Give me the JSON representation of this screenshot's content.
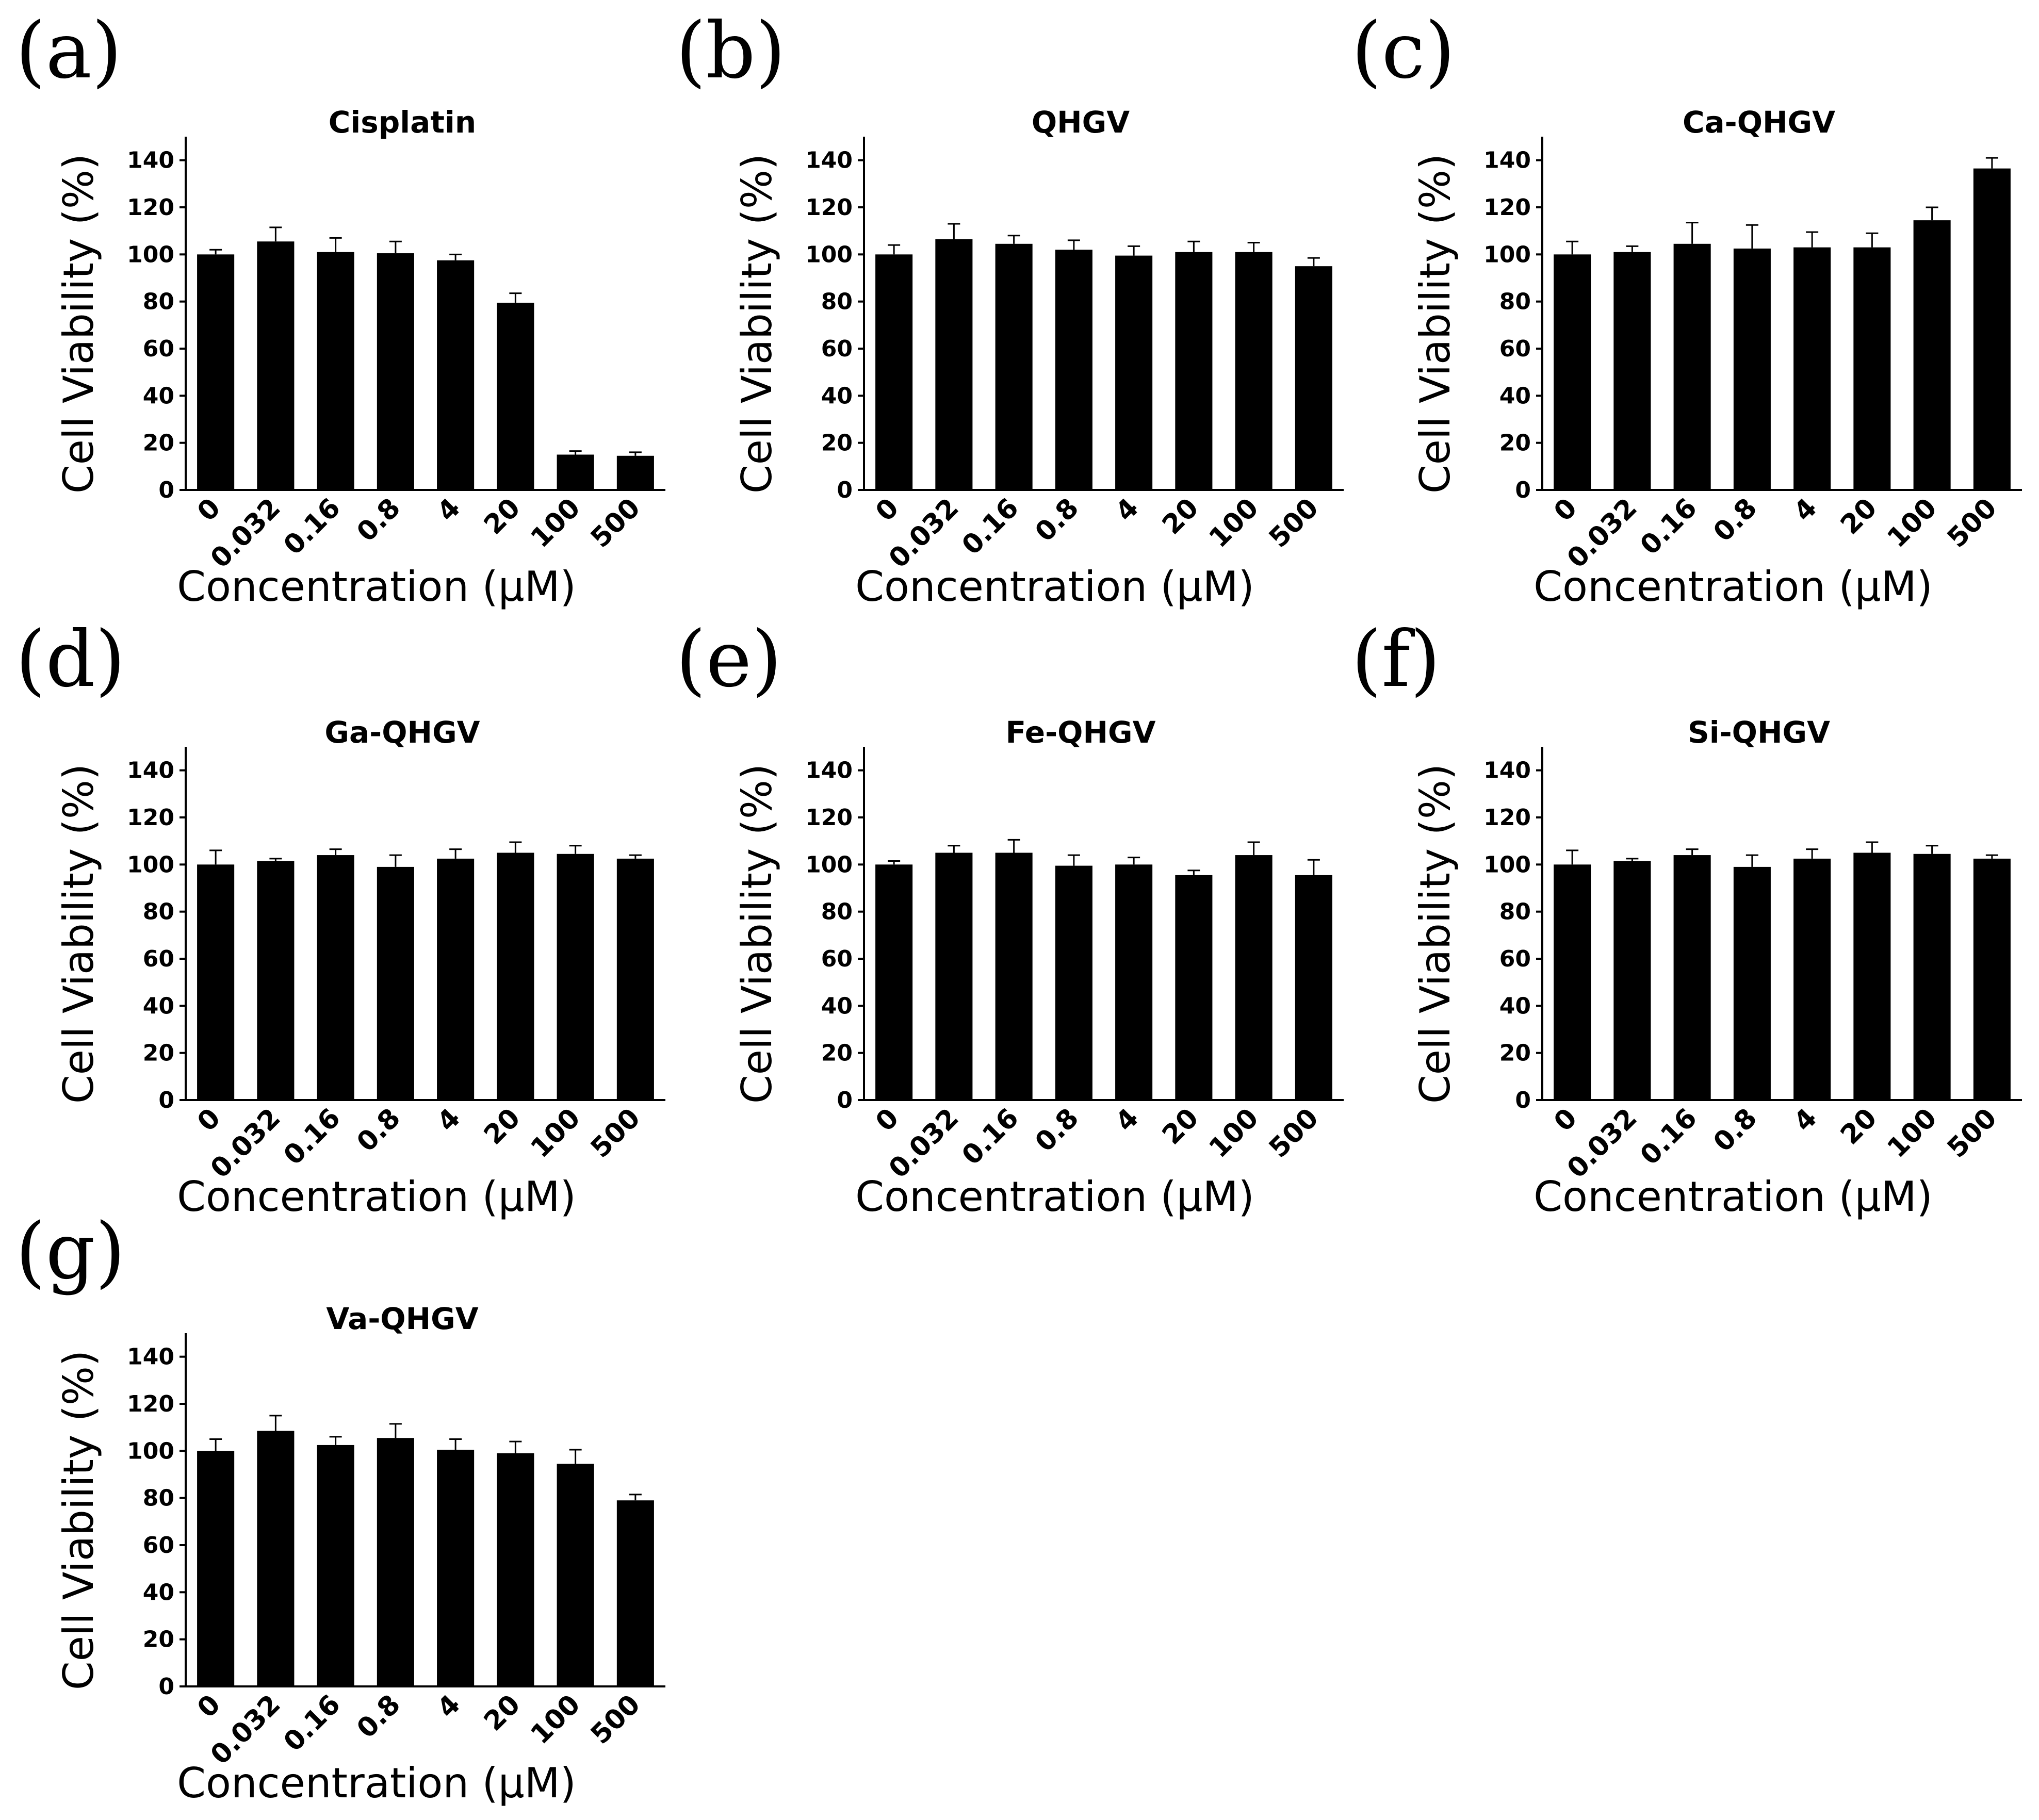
{
  "chart_data": [
    {
      "type": "bar",
      "panel": "(a)",
      "title": "Cisplatin",
      "categories": [
        "0",
        "0.032",
        "0.16",
        "0.8",
        "4",
        "20",
        "100",
        "500"
      ],
      "values": [
        100,
        105.5,
        101,
        100.5,
        97.5,
        79.5,
        15,
        14.5
      ],
      "errors": [
        2,
        6,
        6,
        5,
        2.5,
        4,
        1.5,
        1.5
      ],
      "xlabel": "Concentration (μM)",
      "ylabel": "Cell Viability (%)",
      "ylim": [
        0,
        150
      ],
      "yticks": [
        0,
        20,
        40,
        60,
        80,
        100,
        120,
        140
      ],
      "grid": false
    },
    {
      "type": "bar",
      "panel": "(b)",
      "title": "QHGV",
      "categories": [
        "0",
        "0.032",
        "0.16",
        "0.8",
        "4",
        "20",
        "100",
        "500"
      ],
      "values": [
        100,
        106.5,
        104.5,
        102,
        99.5,
        101,
        101,
        95
      ],
      "errors": [
        4,
        6.5,
        3.5,
        4,
        4,
        4.5,
        4,
        3.5
      ],
      "xlabel": "Concentration (μM)",
      "ylabel": "Cell Viability (%)",
      "ylim": [
        0,
        150
      ],
      "yticks": [
        0,
        20,
        40,
        60,
        80,
        100,
        120,
        140
      ],
      "grid": false
    },
    {
      "type": "bar",
      "panel": "(c)",
      "title": "Ca-QHGV",
      "categories": [
        "0",
        "0.032",
        "0.16",
        "0.8",
        "4",
        "20",
        "100",
        "500"
      ],
      "values": [
        100,
        101,
        104.5,
        102.5,
        103,
        103,
        114.5,
        136.5
      ],
      "errors": [
        5.5,
        2.5,
        9,
        10,
        6.5,
        6,
        5.5,
        4.5
      ],
      "xlabel": "Concentration (μM)",
      "ylabel": "Cell Viability (%)",
      "ylim": [
        0,
        150
      ],
      "yticks": [
        0,
        20,
        40,
        60,
        80,
        100,
        120,
        140
      ],
      "grid": false
    },
    {
      "type": "bar",
      "panel": "(d)",
      "title": "Ga-QHGV",
      "categories": [
        "0",
        "0.032",
        "0.16",
        "0.8",
        "4",
        "20",
        "100",
        "500"
      ],
      "values": [
        100,
        101.5,
        104,
        99,
        102.5,
        105,
        104.5,
        102.5
      ],
      "errors": [
        6,
        1,
        2.5,
        5,
        4,
        4.5,
        3.5,
        1.5
      ],
      "xlabel": "Concentration (μM)",
      "ylabel": "Cell Viability (%)",
      "ylim": [
        0,
        150
      ],
      "yticks": [
        0,
        20,
        40,
        60,
        80,
        100,
        120,
        140
      ],
      "grid": false
    },
    {
      "type": "bar",
      "panel": "(e)",
      "title": "Fe-QHGV",
      "categories": [
        "0",
        "0.032",
        "0.16",
        "0.8",
        "4",
        "20",
        "100",
        "500"
      ],
      "values": [
        100,
        105,
        105,
        99.5,
        100,
        95.5,
        104,
        95.5
      ],
      "errors": [
        1.5,
        3,
        5.5,
        4.5,
        3,
        2,
        5.5,
        6.5
      ],
      "xlabel": "Concentration (μM)",
      "ylabel": "Cell Viability (%)",
      "ylim": [
        0,
        150
      ],
      "yticks": [
        0,
        20,
        40,
        60,
        80,
        100,
        120,
        140
      ],
      "grid": false
    },
    {
      "type": "bar",
      "panel": "(f)",
      "title": "Si-QHGV",
      "categories": [
        "0",
        "0.032",
        "0.16",
        "0.8",
        "4",
        "20",
        "100",
        "500"
      ],
      "values": [
        100,
        101.5,
        104,
        99,
        102.5,
        105,
        104.5,
        102.5
      ],
      "errors": [
        6,
        1,
        2.5,
        5,
        4,
        4.5,
        3.5,
        1.5
      ],
      "xlabel": "Concentration (μM)",
      "ylabel": "Cell Viability (%)",
      "ylim": [
        0,
        150
      ],
      "yticks": [
        0,
        20,
        40,
        60,
        80,
        100,
        120,
        140
      ],
      "grid": false
    },
    {
      "type": "bar",
      "panel": "(g)",
      "title": "Va-QHGV",
      "categories": [
        "0",
        "0.032",
        "0.16",
        "0.8",
        "4",
        "20",
        "100",
        "500"
      ],
      "values": [
        100,
        108.5,
        102.5,
        105.5,
        100.5,
        99,
        94.5,
        79
      ],
      "errors": [
        5,
        6.5,
        3.5,
        6,
        4.5,
        5,
        6,
        2.5
      ],
      "xlabel": "Concentration (μM)",
      "ylabel": "Cell Viability (%)",
      "ylim": [
        0,
        150
      ],
      "yticks": [
        0,
        20,
        40,
        60,
        80,
        100,
        120,
        140
      ],
      "grid": false
    }
  ]
}
